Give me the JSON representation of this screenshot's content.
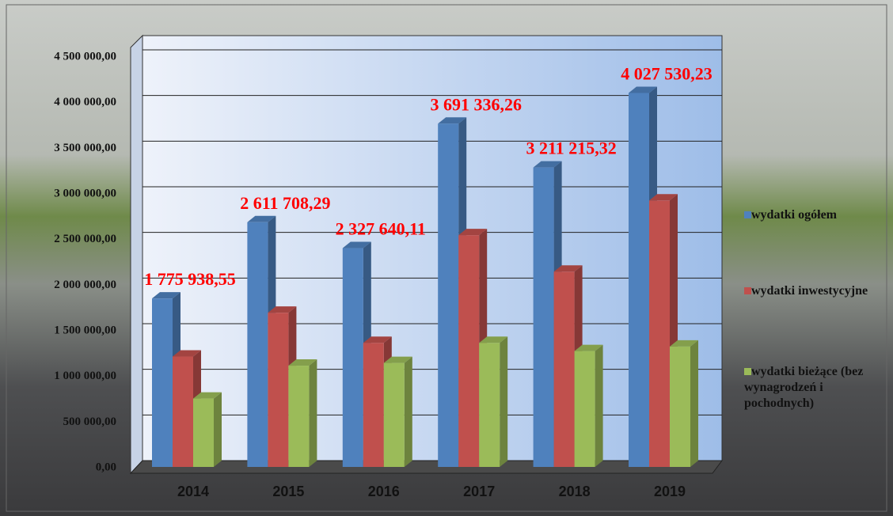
{
  "chart_data": {
    "type": "bar3d",
    "categories": [
      "2014",
      "2015",
      "2016",
      "2017",
      "2018",
      "2019"
    ],
    "series": [
      {
        "name": "wydatki ogółem",
        "color": "#4f81bd",
        "values": [
          1775938.55,
          2611708.29,
          2327640.11,
          3691336.26,
          3211215.32,
          4027530.23
        ],
        "value_labels": [
          "1 775 938,55",
          "2 611 708,29",
          "2 327 640,11",
          "3 691 336,26",
          "3 211 215,32",
          "4 027 530,23"
        ]
      },
      {
        "name": "wydatki inwestycyjne",
        "color": "#c0504d",
        "values": [
          1140000,
          1620000,
          1290000,
          2470000,
          2070000,
          2850000
        ]
      },
      {
        "name": "wydatki bieżące (bez wynagrodzeń i pochodnych)",
        "color": "#9bbb59",
        "values": [
          680000,
          1040000,
          1070000,
          1290000,
          1200000,
          1250000
        ]
      }
    ],
    "ylim": [
      0,
      4500000
    ],
    "yticks": [
      {
        "value": 0,
        "label": "0,00"
      },
      {
        "value": 500000,
        "label": "500 000,00"
      },
      {
        "value": 1000000,
        "label": "1 000 000,00"
      },
      {
        "value": 1500000,
        "label": "1 500 000,00"
      },
      {
        "value": 2000000,
        "label": "2 000 000,00"
      },
      {
        "value": 2500000,
        "label": "2 500 000,00"
      },
      {
        "value": 3000000,
        "label": "3 000 000,00"
      },
      {
        "value": 3500000,
        "label": "3 500 000,00"
      },
      {
        "value": 4000000,
        "label": "4 000 000,00"
      },
      {
        "value": 4500000,
        "label": "4 500 000,00"
      }
    ],
    "grid": true,
    "legend": "right",
    "value_label_color": "#ff0000"
  }
}
